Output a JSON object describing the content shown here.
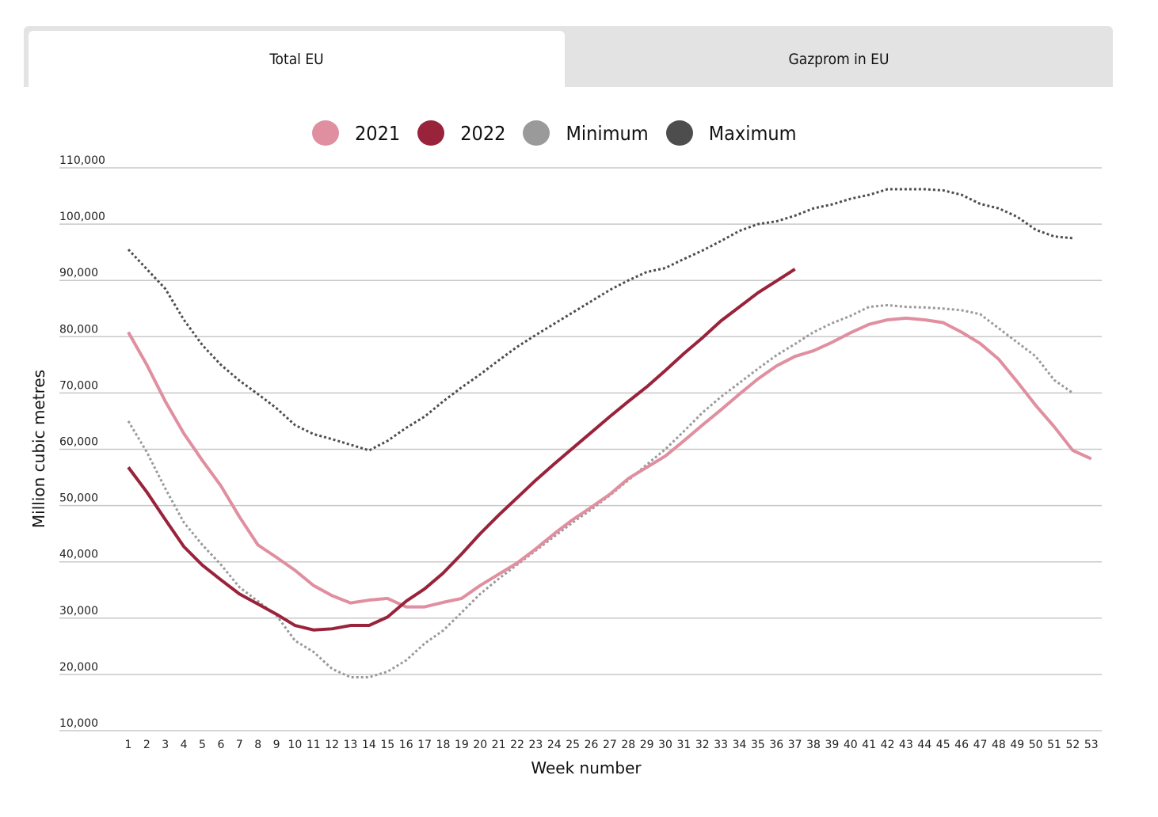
{
  "tabs": [
    {
      "label": "Total EU",
      "active": true
    },
    {
      "label": "Gazprom in EU",
      "active": false
    }
  ],
  "chart_data": {
    "type": "line",
    "title": "",
    "xlabel": "Week number",
    "ylabel": "Million cubic metres",
    "ylim": [
      10000,
      110000
    ],
    "yticks": [
      10000,
      20000,
      30000,
      40000,
      50000,
      60000,
      70000,
      80000,
      90000,
      100000,
      110000
    ],
    "ytick_labels": [
      "10,000",
      "20,000",
      "30,000",
      "40,000",
      "50,000",
      "60,000",
      "70,000",
      "80,000",
      "90,000",
      "100,000",
      "110,000"
    ],
    "xlim": [
      1,
      53
    ],
    "grid": true,
    "legend_position": "top-center",
    "series": [
      {
        "name": "2021",
        "color": "#e08fa0",
        "style": "solid",
        "values": [
          80800,
          75000,
          68500,
          62800,
          58000,
          53500,
          48000,
          43000,
          40800,
          38500,
          35800,
          34000,
          32700,
          33200,
          33500,
          32000,
          32000,
          32800,
          33500,
          35800,
          37800,
          39800,
          42300,
          45000,
          47500,
          49700,
          52000,
          54800,
          56800,
          58800,
          61500,
          64300,
          67000,
          69800,
          72500,
          74800,
          76500,
          77500,
          79000,
          80700,
          82200,
          83000,
          83300,
          83000,
          82500,
          80800,
          78800,
          76000,
          72000,
          67800,
          64000,
          59800,
          58300
        ]
      },
      {
        "name": "2022",
        "color": "#99233a",
        "style": "solid",
        "values": [
          56800,
          52400,
          47500,
          42700,
          39400,
          36800,
          34300,
          32500,
          30700,
          28700,
          27900,
          28100,
          28700,
          28700,
          30200,
          33000,
          35200,
          38000,
          41400,
          45000,
          48300,
          51400,
          54500,
          57400,
          60200,
          63000,
          65800,
          68500,
          71100,
          74000,
          77000,
          79800,
          82800,
          85300,
          87800,
          89900,
          92000
        ]
      },
      {
        "name": "Minimum",
        "color": "#9a9a9a",
        "style": "dotted",
        "values": [
          65000,
          59500,
          53000,
          47000,
          43000,
          39500,
          35500,
          33000,
          30500,
          26000,
          24000,
          21000,
          19500,
          19500,
          20500,
          22500,
          25500,
          27800,
          31000,
          34300,
          37000,
          39500,
          42000,
          44500,
          47000,
          49300,
          51800,
          54500,
          57300,
          60000,
          63200,
          66500,
          69300,
          71800,
          74300,
          76700,
          78700,
          80800,
          82400,
          83700,
          85300,
          85600,
          85300,
          85200,
          85000,
          84700,
          84000,
          81500,
          79000,
          76500,
          72300,
          70000
        ]
      },
      {
        "name": "Maximum",
        "color": "#4d4d4d",
        "style": "dotted",
        "values": [
          95500,
          92000,
          88500,
          83000,
          78500,
          75000,
          72200,
          69800,
          67300,
          64300,
          62700,
          61800,
          60800,
          59800,
          61500,
          63800,
          65800,
          68500,
          71000,
          73300,
          75800,
          78200,
          80300,
          82300,
          84300,
          86300,
          88300,
          90000,
          91500,
          92200,
          93800,
          95300,
          97000,
          98800,
          100000,
          100500,
          101500,
          102800,
          103500,
          104500,
          105200,
          106200,
          106200,
          106200,
          106000,
          105200,
          103600,
          102800,
          101300,
          99000,
          97800,
          97500
        ]
      }
    ]
  }
}
